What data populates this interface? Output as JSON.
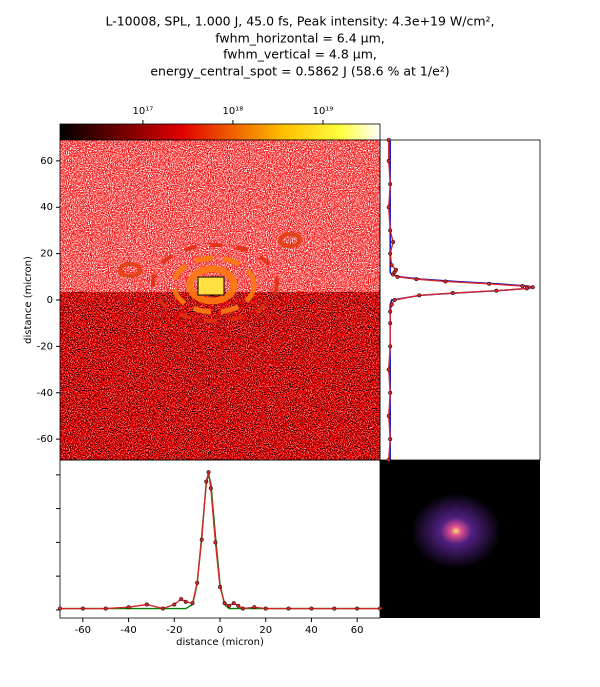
{
  "chart_data": [
    {
      "type": "heatmap",
      "title_lines": [
        "L-10008, SPL, 1.000 J, 45.0 fs, Peak intensity: 4.3e+19 W/cm²,",
        "fwhm_horizontal = 6.4 μm,",
        "fwhm_vertical = 4.8 μm,",
        "energy_central_spot = 0.5862 J (58.6 % at 1/e²)"
      ],
      "xlim": [
        -70,
        70
      ],
      "ylim": [
        -69,
        69
      ],
      "yticks": [
        -60,
        -40,
        -20,
        0,
        20,
        40,
        60
      ],
      "y_label": "distance (micron)",
      "colorbar": {
        "scale": "log",
        "clim": [
          1.2e+16,
          4.3e+19
        ],
        "ticks": [
          {
            "value": 1e+17,
            "label": "10¹⁷"
          },
          {
            "value": 1e+18,
            "label": "10¹⁸"
          },
          {
            "value": 1e+19,
            "label": "10¹⁹"
          }
        ]
      }
    },
    {
      "type": "line",
      "orientation": "horizontal",
      "x": [
        -70,
        -60,
        -50,
        -40,
        -32,
        -25,
        -20,
        -17,
        -15,
        -12,
        -10,
        -8,
        -6,
        -5,
        -4,
        -2,
        0,
        2,
        4,
        6,
        8,
        10,
        15,
        20,
        30,
        40,
        50,
        60,
        70
      ],
      "xlim": [
        -70,
        70
      ],
      "xticks": [
        -60,
        -40,
        -20,
        0,
        20,
        40,
        60
      ],
      "x_label": "distance (micron)",
      "ylim": [
        -0.06,
        1.11
      ],
      "yticks": [
        0,
        0.25,
        0.5,
        0.75,
        1
      ],
      "series": [
        {
          "color": "#d62728",
          "marker": "dot",
          "values": [
            0.01,
            0.01,
            0.01,
            0.02,
            0.04,
            0.01,
            0.04,
            0.08,
            0.06,
            0.05,
            0.2,
            0.52,
            0.95,
            1.02,
            0.9,
            0.5,
            0.17,
            0.05,
            0.03,
            0.05,
            0.03,
            0.01,
            0.02,
            0.01,
            0.01,
            0.01,
            0.01,
            0.01,
            0.01
          ]
        },
        {
          "color": "#008000",
          "values": [
            0.01,
            0.01,
            0.01,
            0.01,
            0.01,
            0.01,
            0.01,
            0.01,
            0.01,
            0.04,
            0.19,
            0.55,
            0.94,
            1.0,
            0.94,
            0.55,
            0.19,
            0.04,
            0.01,
            0.01,
            0.01,
            0.01,
            0.01,
            0.01,
            0.01,
            0.01,
            0.01,
            0.01,
            0.01
          ]
        }
      ]
    },
    {
      "type": "line",
      "orientation": "vertical",
      "y": [
        -69,
        -60,
        -50,
        -40,
        -30,
        -20,
        -10,
        -5,
        -2,
        0,
        2,
        3,
        4,
        5,
        5.5,
        6,
        7,
        8,
        9,
        10,
        11,
        12,
        13,
        15,
        20,
        25,
        30,
        40,
        50,
        60,
        69
      ],
      "ylim": [
        -69,
        69
      ],
      "xlim": [
        -0.05,
        1.05
      ],
      "series": [
        {
          "color": "#d62728",
          "marker": "dot",
          "values": [
            0.01,
            0.02,
            0.01,
            0.02,
            0.01,
            0.02,
            0.02,
            0.02,
            0.03,
            0.05,
            0.22,
            0.45,
            0.75,
            0.96,
            1.0,
            0.93,
            0.7,
            0.4,
            0.2,
            0.07,
            0.04,
            0.05,
            0.06,
            0.03,
            0.02,
            0.04,
            0.02,
            0.01,
            0.02,
            0.01,
            0.01
          ]
        },
        {
          "color": "#0000cc",
          "values": [
            0.02,
            0.02,
            0.02,
            0.02,
            0.02,
            0.02,
            0.02,
            0.02,
            0.02,
            0.03,
            0.23,
            0.47,
            0.76,
            0.97,
            1.0,
            0.97,
            0.76,
            0.47,
            0.23,
            0.09,
            0.03,
            0.02,
            0.02,
            0.02,
            0.02,
            0.02,
            0.02,
            0.02,
            0.02,
            0.02,
            0.02
          ]
        }
      ]
    }
  ]
}
